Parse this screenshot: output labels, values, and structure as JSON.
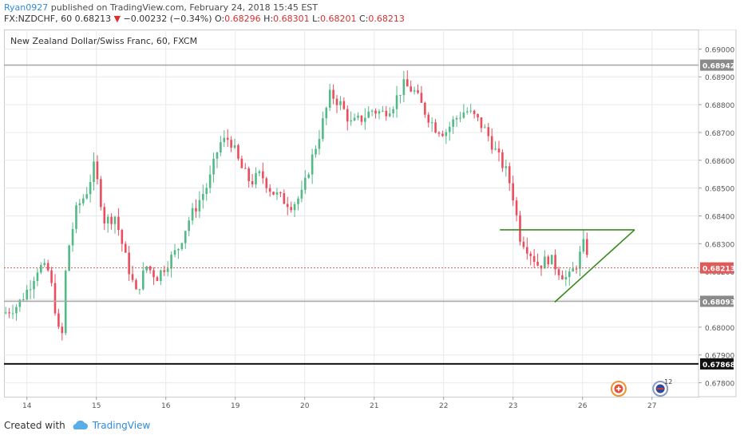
{
  "header": {
    "author": "Ryan0927",
    "published_text": "published on TradingView.com, February 24, 2018 15:45 EST",
    "symbol": "FX:NZDCHF, 60",
    "last": "0.68213",
    "arrow": "▼",
    "change": "−0.00232 (−0.34%)",
    "open_label": "O:",
    "open": "0.68296",
    "high_label": "H:",
    "high": "0.68301",
    "low_label": "L:",
    "low": "0.68201",
    "close_label": "C:",
    "close": "0.68213"
  },
  "chart_data": {
    "type": "candlestick",
    "title": "New Zealand Dollar/Swiss Franc, 60, FXCM",
    "ylim": [
      0.6775,
      0.6907
    ],
    "y_ticks": [
      "0.69000",
      "0.68900",
      "0.68800",
      "0.68700",
      "0.68600",
      "0.68500",
      "0.68400",
      "0.68300",
      "0.68200",
      "0.68100",
      "0.68000",
      "0.67900",
      "0.67800"
    ],
    "x_ticks": [
      {
        "label": "14",
        "pos": 0.033
      },
      {
        "label": "15",
        "pos": 0.133
      },
      {
        "label": "16",
        "pos": 0.233
      },
      {
        "label": "19",
        "pos": 0.333
      },
      {
        "label": "20",
        "pos": 0.433
      },
      {
        "label": "21",
        "pos": 0.533
      },
      {
        "label": "22",
        "pos": 0.633
      },
      {
        "label": "23",
        "pos": 0.733
      },
      {
        "label": "26",
        "pos": 0.833
      },
      {
        "label": "27",
        "pos": 0.933
      }
    ],
    "horizontal_levels": [
      {
        "value": 0.68942,
        "label": "0.68942",
        "style": "gray"
      },
      {
        "value": 0.68093,
        "label": "0.68093",
        "style": "gray"
      },
      {
        "value": 0.67868,
        "label": "0.67868",
        "style": "black"
      }
    ],
    "current_price": {
      "value": 0.68213,
      "label": "0.68213",
      "color": "#e05a5a"
    },
    "candle_path": [
      [
        0.0,
        0.6805
      ],
      [
        0.02,
        0.6808
      ],
      [
        0.035,
        0.6814
      ],
      [
        0.05,
        0.6822
      ],
      [
        0.065,
        0.682
      ],
      [
        0.078,
        0.68
      ],
      [
        0.082,
        0.679
      ],
      [
        0.09,
        0.6825
      ],
      [
        0.105,
        0.6843
      ],
      [
        0.118,
        0.6848
      ],
      [
        0.13,
        0.6858
      ],
      [
        0.145,
        0.6838
      ],
      [
        0.16,
        0.684
      ],
      [
        0.175,
        0.6825
      ],
      [
        0.19,
        0.6812
      ],
      [
        0.205,
        0.6822
      ],
      [
        0.22,
        0.6818
      ],
      [
        0.235,
        0.6823
      ],
      [
        0.25,
        0.6828
      ],
      [
        0.265,
        0.6838
      ],
      [
        0.28,
        0.6845
      ],
      [
        0.295,
        0.6852
      ],
      [
        0.31,
        0.6866
      ],
      [
        0.325,
        0.6868
      ],
      [
        0.34,
        0.6858
      ],
      [
        0.355,
        0.6852
      ],
      [
        0.37,
        0.6855
      ],
      [
        0.385,
        0.6849
      ],
      [
        0.4,
        0.6846
      ],
      [
        0.415,
        0.6844
      ],
      [
        0.43,
        0.6848
      ],
      [
        0.44,
        0.6858
      ],
      [
        0.455,
        0.687
      ],
      [
        0.47,
        0.6884
      ],
      [
        0.485,
        0.688
      ],
      [
        0.5,
        0.6873
      ],
      [
        0.515,
        0.6875
      ],
      [
        0.53,
        0.6878
      ],
      [
        0.545,
        0.6877
      ],
      [
        0.56,
        0.688
      ],
      [
        0.575,
        0.6887
      ],
      [
        0.59,
        0.6885
      ],
      [
        0.605,
        0.6878
      ],
      [
        0.62,
        0.6872
      ],
      [
        0.635,
        0.687
      ],
      [
        0.65,
        0.6875
      ],
      [
        0.665,
        0.6878
      ],
      [
        0.68,
        0.6875
      ],
      [
        0.695,
        0.687
      ],
      [
        0.71,
        0.6862
      ],
      [
        0.725,
        0.6855
      ],
      [
        0.735,
        0.6845
      ],
      [
        0.742,
        0.6833
      ],
      [
        0.755,
        0.6828
      ],
      [
        0.77,
        0.6822
      ],
      [
        0.785,
        0.6825
      ],
      [
        0.8,
        0.682
      ],
      [
        0.812,
        0.6817
      ],
      [
        0.825,
        0.6823
      ],
      [
        0.835,
        0.683
      ],
      [
        0.842,
        0.6826
      ]
    ],
    "triangle": {
      "color": "#3a8a1c",
      "top_line": [
        [
          0.714,
          0.6835
        ],
        [
          0.908,
          0.6835
        ]
      ],
      "lower_line": [
        [
          0.793,
          0.6809
        ],
        [
          0.908,
          0.6835
        ]
      ]
    },
    "event_markers": [
      {
        "icon": "calendar-event-icon",
        "pos": 0.885
      },
      {
        "icon": "flag-event-icon",
        "pos": 0.945,
        "count": "12"
      }
    ]
  },
  "footer": {
    "created_with": "Created with",
    "brand": "TradingView"
  },
  "colors": {
    "up": "#53b987",
    "down": "#eb4d5c",
    "grid": "#e6e9ee",
    "axis_text": "#555555"
  }
}
